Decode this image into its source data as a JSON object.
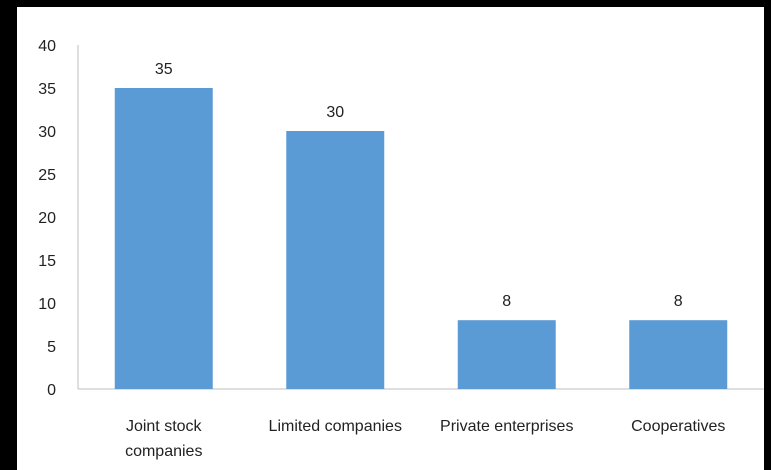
{
  "chart_data": {
    "type": "bar",
    "categories": [
      [
        "Joint stock",
        "companies"
      ],
      [
        "Limited companies"
      ],
      [
        "Private enterprises"
      ],
      [
        "Cooperatives"
      ]
    ],
    "values": [
      35,
      30,
      8,
      8
    ],
    "data_labels": [
      "35",
      "30",
      "8",
      "8"
    ],
    "y_ticks": [
      "0",
      "5",
      "10",
      "15",
      "20",
      "25",
      "30",
      "35",
      "40"
    ],
    "ylim": [
      0,
      40
    ],
    "title": "",
    "xlabel": "",
    "ylabel": "",
    "grid": false,
    "legend": "none",
    "bar_color": "#5B9BD5",
    "frame_color": "#000000"
  }
}
